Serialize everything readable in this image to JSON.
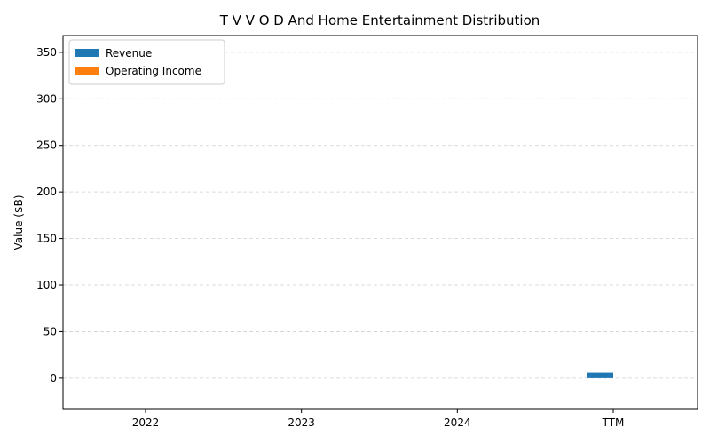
{
  "chart_data": {
    "type": "bar",
    "title": "T V V O D And Home Entertainment Distribution",
    "xlabel": "",
    "ylabel": "Value ($B)",
    "categories": [
      "2022",
      "2023",
      "2024",
      "TTM"
    ],
    "series": [
      {
        "name": "Revenue",
        "color": "#1f77b4",
        "values": [
          0,
          0,
          0,
          6
        ]
      },
      {
        "name": "Operating Income",
        "color": "#ff7f0e",
        "values": [
          0,
          0,
          0,
          0
        ]
      }
    ],
    "ylim": [
      -33.5,
      368
    ],
    "yticks": [
      0,
      50,
      100,
      150,
      200,
      250,
      300,
      350
    ],
    "grid": "y-dashed",
    "legend": "top-left"
  }
}
